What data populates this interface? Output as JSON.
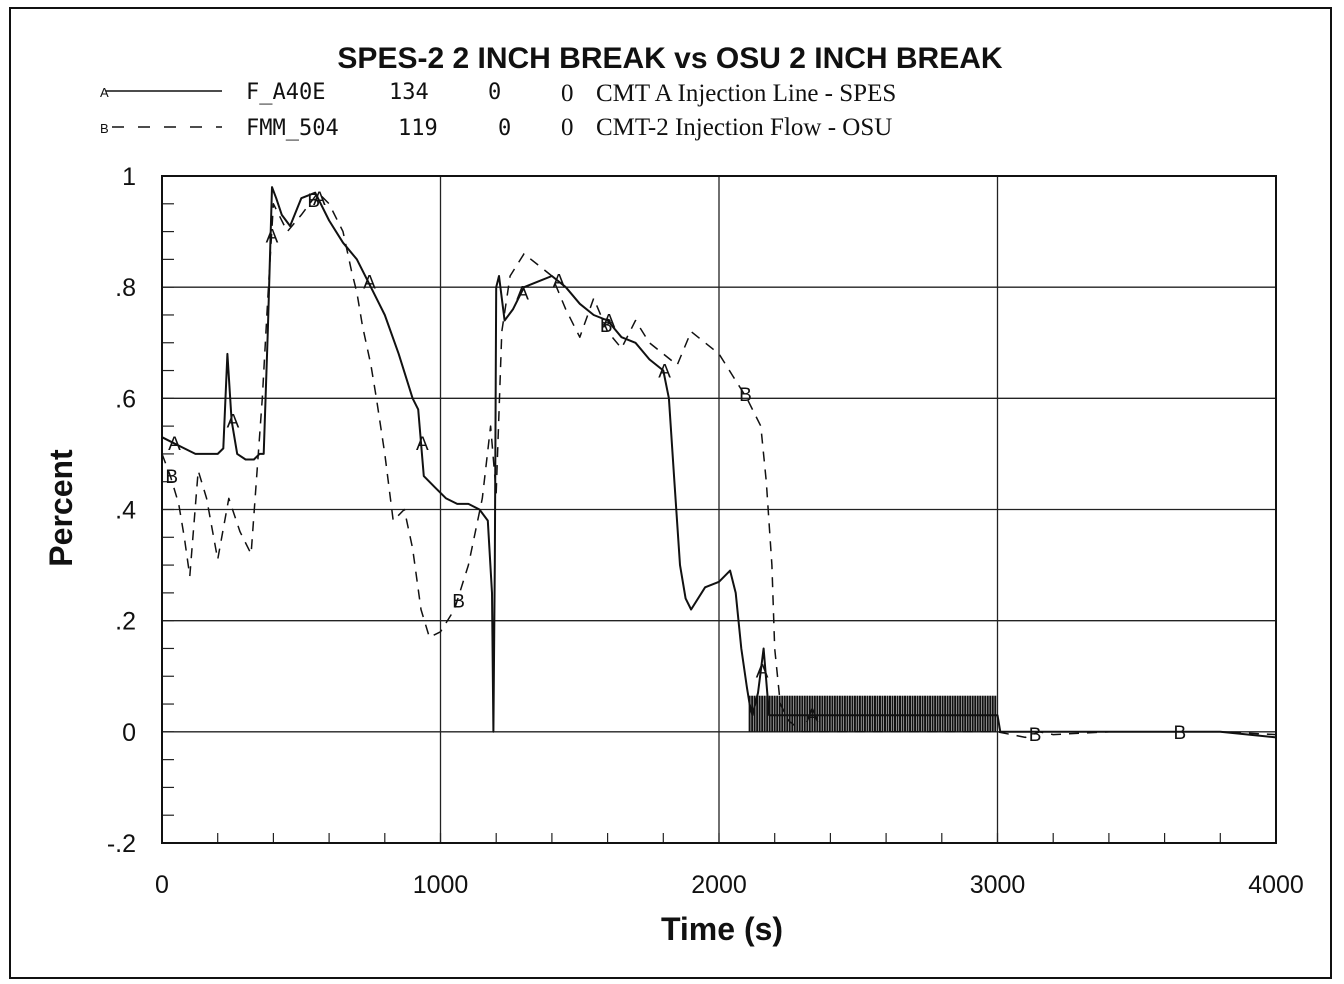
{
  "chart_data": {
    "type": "line",
    "title": "SPES-2 2 INCH BREAK vs OSU 2 INCH BREAK",
    "xlabel": "Time  (s)",
    "ylabel": "Percent",
    "xlim": [
      0,
      4000
    ],
    "ylim": [
      -0.2,
      1
    ],
    "x_ticks": [
      0,
      1000,
      2000,
      3000,
      4000
    ],
    "x_tick_labels": [
      "0",
      "1000",
      "2000",
      "3000",
      "4000"
    ],
    "y_ticks": [
      -0.2,
      0,
      0.2,
      0.4,
      0.6,
      0.8,
      1
    ],
    "y_tick_labels": [
      "-.2",
      "0",
      ".2",
      ".4",
      ".6",
      ".8",
      "1"
    ],
    "grid": true,
    "legend_position": "top-left",
    "legend": [
      {
        "marker": "A",
        "symbol": "F_A40E",
        "n": "134",
        "v1": "0",
        "v2": "0",
        "description": "CMT A Injection Line - SPES",
        "style": "solid"
      },
      {
        "marker": "B",
        "symbol": "FMM_504",
        "n": "119",
        "v1": "0",
        "v2": "0",
        "description": "CMT-2 Injection Flow - OSU",
        "style": "dashed"
      }
    ],
    "series": [
      {
        "name": "F_A40E",
        "marker": "A",
        "style": "solid",
        "color": "#111111",
        "x": [
          0,
          40,
          80,
          120,
          160,
          200,
          220,
          235,
          250,
          270,
          300,
          330,
          350,
          365,
          380,
          395,
          410,
          430,
          460,
          500,
          550,
          600,
          650,
          700,
          750,
          800,
          850,
          900,
          920,
          940,
          980,
          1020,
          1060,
          1100,
          1140,
          1170,
          1185,
          1190,
          1195,
          1200,
          1210,
          1230,
          1260,
          1300,
          1350,
          1400,
          1450,
          1500,
          1550,
          1600,
          1650,
          1700,
          1750,
          1800,
          1820,
          1840,
          1860,
          1880,
          1900,
          1950,
          2000,
          2040,
          2060,
          2080,
          2100,
          2110,
          2120,
          2140,
          2160,
          2180,
          2200,
          2300,
          2400,
          2500,
          2600,
          2700,
          2800,
          2900,
          3000,
          3010,
          3100,
          3200,
          3400,
          3600,
          3800,
          4000
        ],
        "y": [
          0.53,
          0.52,
          0.51,
          0.5,
          0.5,
          0.5,
          0.51,
          0.68,
          0.56,
          0.5,
          0.49,
          0.49,
          0.5,
          0.5,
          0.72,
          0.98,
          0.96,
          0.93,
          0.91,
          0.96,
          0.97,
          0.92,
          0.88,
          0.85,
          0.8,
          0.75,
          0.68,
          0.6,
          0.58,
          0.46,
          0.44,
          0.42,
          0.41,
          0.41,
          0.4,
          0.38,
          0.25,
          0.0,
          0.3,
          0.8,
          0.82,
          0.74,
          0.76,
          0.8,
          0.81,
          0.82,
          0.8,
          0.77,
          0.75,
          0.74,
          0.71,
          0.7,
          0.67,
          0.65,
          0.6,
          0.45,
          0.3,
          0.24,
          0.22,
          0.26,
          0.27,
          0.29,
          0.25,
          0.15,
          0.08,
          0.05,
          0.03,
          0.07,
          0.15,
          0.03,
          0.03,
          0.03,
          0.03,
          0.03,
          0.03,
          0.03,
          0.03,
          0.03,
          0.03,
          0.0,
          0.0,
          0.0,
          0.0,
          0.0,
          0.0,
          -0.01
        ]
      },
      {
        "name": "FMM_504",
        "marker": "B",
        "style": "dashed",
        "color": "#111111",
        "x": [
          0,
          30,
          60,
          80,
          100,
          130,
          160,
          200,
          240,
          280,
          320,
          360,
          380,
          400,
          450,
          500,
          560,
          600,
          650,
          680,
          700,
          720,
          750,
          770,
          800,
          830,
          870,
          900,
          930,
          960,
          1000,
          1050,
          1100,
          1150,
          1180,
          1200,
          1220,
          1250,
          1300,
          1350,
          1400,
          1450,
          1500,
          1550,
          1600,
          1650,
          1700,
          1750,
          1800,
          1850,
          1900,
          1950,
          2000,
          2050,
          2100,
          2150,
          2170,
          2190,
          2200,
          2220,
          2250,
          2300,
          2400,
          2600,
          2800,
          3000,
          3050,
          3100,
          3150,
          3200,
          3400,
          3600,
          3800,
          4000
        ],
        "y": [
          0.5,
          0.46,
          0.41,
          0.35,
          0.28,
          0.47,
          0.42,
          0.31,
          0.42,
          0.36,
          0.32,
          0.6,
          0.78,
          0.95,
          0.9,
          0.93,
          0.97,
          0.95,
          0.9,
          0.83,
          0.79,
          0.73,
          0.66,
          0.6,
          0.5,
          0.38,
          0.4,
          0.33,
          0.22,
          0.17,
          0.18,
          0.22,
          0.3,
          0.42,
          0.55,
          0.43,
          0.72,
          0.82,
          0.86,
          0.84,
          0.82,
          0.76,
          0.71,
          0.78,
          0.72,
          0.69,
          0.74,
          0.7,
          0.68,
          0.66,
          0.72,
          0.7,
          0.68,
          0.64,
          0.6,
          0.55,
          0.45,
          0.3,
          0.15,
          0.05,
          0.02,
          0.0,
          0.0,
          0.0,
          0.0,
          0.0,
          -0.005,
          -0.01,
          0.0,
          -0.005,
          0.0,
          0.0,
          0.0,
          -0.005
        ]
      }
    ],
    "marker_points": [
      {
        "series": "A",
        "x": [
          40,
          250,
          390,
          560,
          740,
          930,
          1290,
          1420,
          1600,
          1800,
          2150,
          2330
        ]
      },
      {
        "series": "B",
        "x": [
          30,
          540,
          1060,
          1590,
          2090,
          3130,
          3650
        ]
      }
    ]
  }
}
